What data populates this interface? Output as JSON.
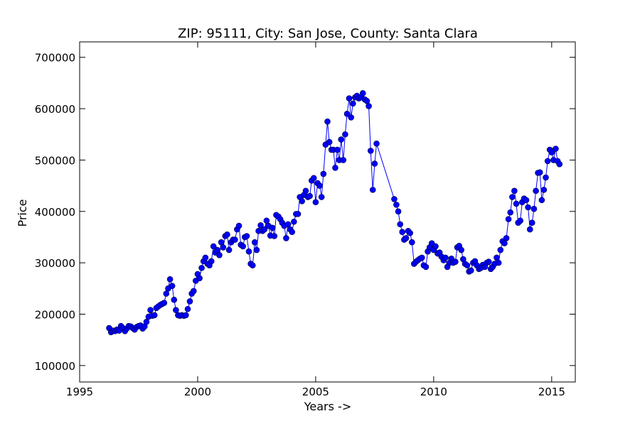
{
  "chart_data": {
    "type": "line",
    "title": "ZIP: 95111, City: San Jose, County: Santa Clara",
    "x_label": "Years ->",
    "y_label": "Price",
    "xlim": [
      1995,
      2016
    ],
    "ylim": [
      68000,
      730000
    ],
    "xticks": [
      1995,
      2000,
      2005,
      2010,
      2015
    ],
    "yticks": [
      100000,
      200000,
      300000,
      400000,
      500000,
      600000,
      700000
    ],
    "color": "#0000ff",
    "x": [
      1996.25,
      1996.33,
      1996.42,
      1996.5,
      1996.58,
      1996.67,
      1996.75,
      1996.83,
      1996.92,
      1997.0,
      1997.08,
      1997.17,
      1997.25,
      1997.33,
      1997.42,
      1997.5,
      1997.58,
      1997.67,
      1997.75,
      1997.83,
      1997.92,
      1998.0,
      1998.08,
      1998.17,
      1998.25,
      1998.33,
      1998.42,
      1998.5,
      1998.58,
      1998.67,
      1998.75,
      1998.83,
      1998.92,
      1999.0,
      1999.08,
      1999.17,
      1999.25,
      1999.33,
      1999.42,
      1999.5,
      1999.58,
      1999.67,
      1999.75,
      1999.83,
      1999.92,
      2000.0,
      2000.08,
      2000.17,
      2000.25,
      2000.33,
      2000.42,
      2000.5,
      2000.58,
      2000.67,
      2000.75,
      2000.83,
      2000.92,
      2001.0,
      2001.08,
      2001.17,
      2001.25,
      2001.33,
      2001.42,
      2001.5,
      2001.58,
      2001.67,
      2001.75,
      2001.83,
      2001.92,
      2002.0,
      2002.08,
      2002.17,
      2002.25,
      2002.33,
      2002.42,
      2002.5,
      2002.58,
      2002.67,
      2002.75,
      2002.83,
      2002.92,
      2003.0,
      2003.08,
      2003.17,
      2003.25,
      2003.33,
      2003.42,
      2003.5,
      2003.58,
      2003.67,
      2003.75,
      2003.83,
      2003.92,
      2004.0,
      2004.08,
      2004.17,
      2004.25,
      2004.33,
      2004.42,
      2004.5,
      2004.58,
      2004.67,
      2004.75,
      2004.83,
      2004.92,
      2005.0,
      2005.08,
      2005.17,
      2005.25,
      2005.33,
      2005.42,
      2005.5,
      2005.58,
      2005.67,
      2005.75,
      2005.83,
      2005.92,
      2006.0,
      2006.08,
      2006.17,
      2006.25,
      2006.33,
      2006.42,
      2006.5,
      2006.58,
      2006.67,
      2006.75,
      2006.83,
      2006.92,
      2007.0,
      2007.08,
      2007.17,
      2007.25,
      2007.33,
      2007.42,
      2007.5,
      2007.58,
      2008.33,
      2008.42,
      2008.5,
      2008.58,
      2008.67,
      2008.75,
      2008.83,
      2008.92,
      2009.0,
      2009.08,
      2009.17,
      2009.25,
      2009.33,
      2009.42,
      2009.5,
      2009.58,
      2009.67,
      2009.75,
      2009.83,
      2009.92,
      2010.0,
      2010.08,
      2010.17,
      2010.25,
      2010.33,
      2010.42,
      2010.5,
      2010.58,
      2010.67,
      2010.75,
      2010.83,
      2010.92,
      2011.0,
      2011.08,
      2011.17,
      2011.25,
      2011.33,
      2011.42,
      2011.5,
      2011.58,
      2011.67,
      2011.75,
      2011.83,
      2011.92,
      2012.0,
      2012.08,
      2012.17,
      2012.25,
      2012.33,
      2012.42,
      2012.5,
      2012.58,
      2012.67,
      2012.75,
      2012.83,
      2012.92,
      2013.0,
      2013.08,
      2013.17,
      2013.25,
      2013.33,
      2013.42,
      2013.5,
      2013.58,
      2013.67,
      2013.75,
      2013.83,
      2013.92,
      2014.0,
      2014.08,
      2014.17,
      2014.25,
      2014.33,
      2014.42,
      2014.5,
      2014.58,
      2014.67,
      2014.75,
      2014.83,
      2014.92,
      2015.0,
      2015.08,
      2015.17,
      2015.25,
      2015.33
    ],
    "values": [
      173000,
      165000,
      168000,
      167000,
      170000,
      168000,
      177000,
      173000,
      167000,
      172000,
      177000,
      176000,
      173000,
      170000,
      175000,
      177000,
      178000,
      172000,
      176000,
      185000,
      195000,
      208000,
      197000,
      198000,
      212000,
      215000,
      218000,
      220000,
      222000,
      240000,
      250000,
      268000,
      255000,
      228000,
      208000,
      198000,
      197000,
      198000,
      197000,
      198000,
      210000,
      225000,
      240000,
      245000,
      265000,
      278000,
      270000,
      290000,
      303000,
      310000,
      298000,
      295000,
      303000,
      332000,
      320000,
      325000,
      315000,
      340000,
      330000,
      352000,
      355000,
      325000,
      340000,
      345000,
      345000,
      365000,
      372000,
      335000,
      332000,
      350000,
      352000,
      322000,
      298000,
      295000,
      340000,
      325000,
      362000,
      373000,
      362000,
      365000,
      382000,
      372000,
      353000,
      368000,
      352000,
      393000,
      390000,
      385000,
      378000,
      372000,
      348000,
      375000,
      365000,
      360000,
      380000,
      395000,
      395000,
      428000,
      420000,
      432000,
      440000,
      428000,
      430000,
      460000,
      465000,
      418000,
      455000,
      450000,
      428000,
      473000,
      530000,
      575000,
      535000,
      520000,
      520000,
      485000,
      520000,
      500000,
      540000,
      500000,
      550000,
      590000,
      620000,
      583000,
      610000,
      622000,
      625000,
      620000,
      622000,
      630000,
      618000,
      615000,
      605000,
      518000,
      442000,
      493000,
      532000,
      424000,
      413000,
      400000,
      375000,
      360000,
      345000,
      348000,
      362000,
      358000,
      340000,
      298000,
      302000,
      305000,
      308000,
      310000,
      295000,
      292000,
      322000,
      330000,
      338000,
      325000,
      332000,
      318000,
      320000,
      312000,
      305000,
      310000,
      292000,
      300000,
      308000,
      300000,
      302000,
      330000,
      333000,
      325000,
      307000,
      298000,
      295000,
      283000,
      285000,
      300000,
      303000,
      295000,
      288000,
      290000,
      296000,
      292000,
      300000,
      302000,
      288000,
      292000,
      298000,
      310000,
      300000,
      325000,
      342000,
      338000,
      348000,
      385000,
      398000,
      428000,
      440000,
      415000,
      378000,
      382000,
      418000,
      425000,
      422000,
      408000,
      365000,
      378000,
      405000,
      440000,
      475000,
      476000,
      422000,
      442000,
      466000,
      498000,
      520000,
      515000,
      500000,
      522000,
      498000,
      492000
    ]
  }
}
